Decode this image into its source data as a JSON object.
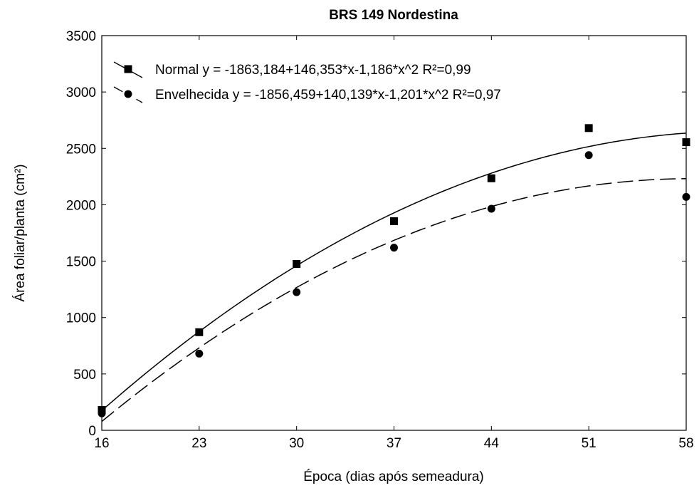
{
  "chart_data": {
    "type": "scatter",
    "title": "BRS 149 Nordestina",
    "x_label": "Época (dias após semeadura)",
    "y_label": "Área foliar/planta (cm²)",
    "x": [
      16,
      23,
      30,
      37,
      44,
      51,
      58
    ],
    "series": [
      {
        "name": "Normal",
        "equation": "y = -1863,184+146,353*x-1,186*x^2 R²=0,99",
        "marker": "square",
        "dash": "solid",
        "color": "#000000",
        "values": [
          180,
          870,
          1475,
          1855,
          2235,
          2680,
          2555
        ],
        "fit": [
          -1863.184,
          146.353,
          -1.186
        ]
      },
      {
        "name": "Envelhecida",
        "equation": "y = -1856,459+140,139*x-1,201*x^2 R²=0,97",
        "marker": "circle",
        "dash": "dashed",
        "color": "#000000",
        "values": [
          150,
          680,
          1225,
          1620,
          1965,
          2440,
          2070
        ],
        "fit": [
          -1856.459,
          140.139,
          -1.201
        ]
      }
    ],
    "xlim": [
      16,
      58
    ],
    "xticks": [
      16,
      23,
      30,
      37,
      44,
      51,
      58
    ],
    "ylim": [
      0,
      3500
    ],
    "yticks": [
      0,
      500,
      1000,
      1500,
      2000,
      2500,
      3000,
      3500
    ]
  }
}
